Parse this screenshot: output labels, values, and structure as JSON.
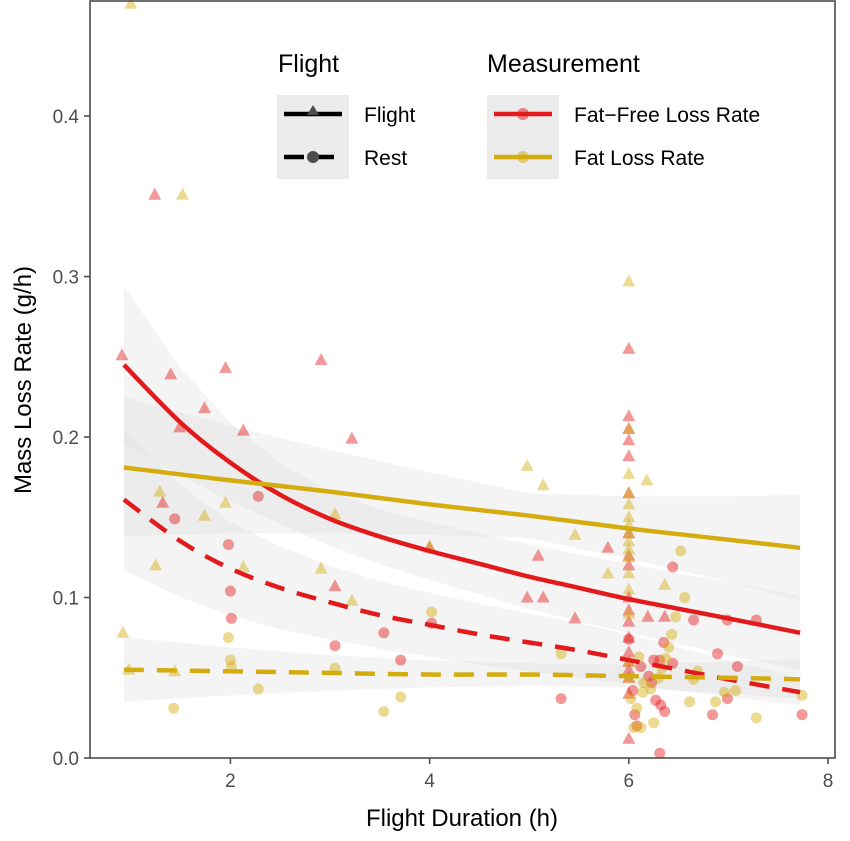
{
  "chart_data": {
    "type": "scatter",
    "title": "",
    "xlabel": "Flight Duration (h)",
    "ylabel": "Mass Loss Rate (g/h)",
    "xlim": [
      0.59,
      8.07
    ],
    "ylim": [
      0,
      0.4717
    ],
    "x_ticks": [
      2,
      4,
      6,
      8
    ],
    "x_tick_labels": [
      "2",
      "4",
      "6",
      "8"
    ],
    "y_ticks": [
      0.0,
      0.1,
      0.2,
      0.3,
      0.4
    ],
    "y_tick_labels": [
      "0.0",
      "0.1",
      "0.2",
      "0.3",
      "0.4"
    ],
    "grid": false,
    "colors": {
      "fat_free": "#e31a1c",
      "fat": "#d4ac0d",
      "ribbon": "#d9d9d9",
      "legend_key_bg": "#ebebeb",
      "axis": "#4d4d4d"
    },
    "legend": {
      "placement": "top-right",
      "groups": [
        {
          "title": "Flight",
          "entries": [
            {
              "label": "Flight",
              "linetype": "solid",
              "shape": "triangle"
            },
            {
              "label": "Rest",
              "linetype": "dashed",
              "shape": "circle"
            }
          ]
        },
        {
          "title": "Measurement",
          "entries": [
            {
              "label": "Fat−Free Loss Rate",
              "color_key": "fat_free"
            },
            {
              "label": "Fat Loss Rate",
              "color_key": "fat"
            }
          ]
        }
      ]
    },
    "fits": [
      {
        "name": "Flight / Fat-Free Loss Rate",
        "color_key": "fat_free",
        "linetype": "solid",
        "x": [
          0.93,
          1.5,
          2.0,
          2.5,
          3.0,
          3.5,
          4.0,
          4.5,
          5.0,
          5.5,
          6.0,
          6.5,
          7.0,
          7.72
        ],
        "y": [
          0.245,
          0.209,
          0.184,
          0.164,
          0.149,
          0.138,
          0.129,
          0.121,
          0.113,
          0.106,
          0.099,
          0.093,
          0.087,
          0.078
        ],
        "lower": [
          0.196,
          0.176,
          0.16,
          0.146,
          0.132,
          0.121,
          0.111,
          0.102,
          0.093,
          0.085,
          0.078,
          0.071,
          0.064,
          0.055
        ],
        "upper": [
          0.294,
          0.243,
          0.209,
          0.184,
          0.166,
          0.155,
          0.147,
          0.14,
          0.133,
          0.127,
          0.121,
          0.115,
          0.11,
          0.101
        ]
      },
      {
        "name": "Flight / Fat Loss Rate",
        "color_key": "fat",
        "linetype": "solid",
        "x": [
          0.93,
          2.0,
          3.0,
          4.0,
          5.0,
          6.0,
          7.0,
          7.72
        ],
        "y": [
          0.181,
          0.173,
          0.166,
          0.158,
          0.151,
          0.143,
          0.136,
          0.131
        ],
        "lower": [
          0.138,
          0.14,
          0.14,
          0.139,
          0.137,
          0.124,
          0.11,
          0.098
        ],
        "upper": [
          0.225,
          0.207,
          0.192,
          0.178,
          0.165,
          0.163,
          0.163,
          0.164
        ]
      },
      {
        "name": "Rest / Fat-Free Loss Rate",
        "color_key": "fat_free",
        "linetype": "dashed",
        "x": [
          0.93,
          1.5,
          2.0,
          2.5,
          3.0,
          3.5,
          4.0,
          4.5,
          5.0,
          5.5,
          6.0,
          6.5,
          7.0,
          7.72
        ],
        "y": [
          0.161,
          0.135,
          0.118,
          0.106,
          0.097,
          0.089,
          0.083,
          0.077,
          0.072,
          0.067,
          0.061,
          0.055,
          0.049,
          0.041
        ],
        "lower": [
          0.117,
          0.1,
          0.089,
          0.08,
          0.074,
          0.068,
          0.063,
          0.058,
          0.054,
          0.05,
          0.046,
          0.042,
          0.038,
          0.033
        ],
        "upper": [
          0.205,
          0.17,
          0.147,
          0.132,
          0.12,
          0.11,
          0.103,
          0.096,
          0.09,
          0.084,
          0.077,
          0.069,
          0.061,
          0.05
        ]
      },
      {
        "name": "Rest / Fat Loss Rate",
        "color_key": "fat",
        "linetype": "dashed",
        "x": [
          0.93,
          2.0,
          3.0,
          4.0,
          5.0,
          6.0,
          7.0,
          7.72
        ],
        "y": [
          0.055,
          0.054,
          0.053,
          0.052,
          0.052,
          0.051,
          0.05,
          0.049
        ],
        "lower": [
          0.035,
          0.039,
          0.042,
          0.044,
          0.045,
          0.044,
          0.04,
          0.037
        ],
        "upper": [
          0.075,
          0.069,
          0.064,
          0.061,
          0.059,
          0.058,
          0.06,
          0.062
        ]
      }
    ],
    "points": [
      {
        "name": "Flight / Fat-Free Loss Rate",
        "color_key": "fat_free",
        "shape": "triangle",
        "x": [
          0.91,
          1.24,
          1.4,
          1.49,
          1.32,
          1.74,
          1.95,
          2.13,
          2.91,
          3.22,
          3.05,
          4.0,
          4.98,
          5.14,
          5.09,
          5.46,
          5.79,
          6.0,
          6.0,
          6.0,
          6.0,
          6.0,
          6.0,
          6.0,
          6.0,
          6.0,
          6.0,
          6.0,
          6.0,
          6.0,
          6.0,
          6.0,
          6.0,
          6.0,
          6.0,
          6.0,
          6.19,
          6.36
        ],
        "y": [
          0.251,
          0.351,
          0.239,
          0.206,
          0.159,
          0.218,
          0.243,
          0.204,
          0.248,
          0.199,
          0.107,
          0.131,
          0.1,
          0.1,
          0.126,
          0.087,
          0.131,
          0.255,
          0.213,
          0.205,
          0.198,
          0.188,
          0.165,
          0.14,
          0.126,
          0.12,
          0.1,
          0.092,
          0.085,
          0.075,
          0.066,
          0.06,
          0.055,
          0.05,
          0.04,
          0.012,
          0.088,
          0.088
        ]
      },
      {
        "name": "Flight / Fat Loss Rate",
        "color_key": "fat",
        "shape": "triangle",
        "x": [
          1.0,
          1.52,
          0.92,
          0.98,
          1.29,
          1.25,
          1.74,
          1.95,
          2.13,
          2.91,
          3.05,
          3.22,
          4.0,
          4.98,
          5.14,
          5.46,
          5.79,
          6.18,
          6.36,
          6.0,
          6.0,
          6.0,
          6.0,
          6.0,
          6.0,
          6.0,
          6.0,
          6.0,
          6.0,
          6.0,
          6.0,
          6.0,
          6.0,
          6.0,
          6.0,
          1.44
        ],
        "y": [
          0.47,
          0.351,
          0.078,
          0.055,
          0.166,
          0.12,
          0.151,
          0.159,
          0.119,
          0.118,
          0.152,
          0.098,
          0.132,
          0.182,
          0.17,
          0.139,
          0.115,
          0.173,
          0.108,
          0.297,
          0.205,
          0.177,
          0.165,
          0.158,
          0.15,
          0.145,
          0.14,
          0.135,
          0.13,
          0.125,
          0.115,
          0.105,
          0.09,
          0.06,
          0.05,
          0.054
        ]
      },
      {
        "name": "Rest / Fat-Free Loss Rate",
        "color_key": "fat_free",
        "shape": "circle",
        "x": [
          1.44,
          2.28,
          1.98,
          2.0,
          2.01,
          3.05,
          3.54,
          3.71,
          4.02,
          5.32,
          6.06,
          6.31,
          6.0,
          6.04,
          6.12,
          6.25,
          6.31,
          6.23,
          6.27,
          6.32,
          6.36,
          6.44,
          6.44,
          6.65,
          6.89,
          6.99,
          7.28,
          7.09,
          6.99,
          6.84,
          7.74,
          6.08,
          6.2,
          6.35
        ],
        "y": [
          0.149,
          0.163,
          0.133,
          0.104,
          0.087,
          0.07,
          0.078,
          0.061,
          0.084,
          0.037,
          0.027,
          0.003,
          0.074,
          0.042,
          0.057,
          0.061,
          0.061,
          0.047,
          0.036,
          0.033,
          0.029,
          0.059,
          0.119,
          0.086,
          0.065,
          0.086,
          0.086,
          0.057,
          0.037,
          0.027,
          0.027,
          0.02,
          0.051,
          0.072
        ]
      },
      {
        "name": "Rest / Fat Loss Rate",
        "color_key": "fat",
        "shape": "circle",
        "x": [
          1.43,
          1.98,
          2.0,
          2.01,
          2.28,
          3.05,
          3.54,
          3.71,
          4.02,
          5.32,
          6.02,
          6.05,
          6.12,
          6.08,
          6.14,
          6.22,
          6.3,
          6.33,
          6.37,
          6.4,
          6.43,
          6.47,
          6.52,
          6.56,
          6.61,
          6.69,
          6.87,
          7.07,
          7.28,
          7.74,
          6.65,
          6.96,
          6.25,
          6.1,
          6.15
        ],
        "y": [
          0.031,
          0.075,
          0.061,
          0.057,
          0.043,
          0.056,
          0.029,
          0.038,
          0.091,
          0.065,
          0.037,
          0.019,
          0.019,
          0.031,
          0.041,
          0.043,
          0.05,
          0.056,
          0.062,
          0.069,
          0.077,
          0.088,
          0.129,
          0.1,
          0.035,
          0.054,
          0.035,
          0.042,
          0.025,
          0.039,
          0.049,
          0.041,
          0.022,
          0.063,
          0.047
        ]
      }
    ]
  }
}
